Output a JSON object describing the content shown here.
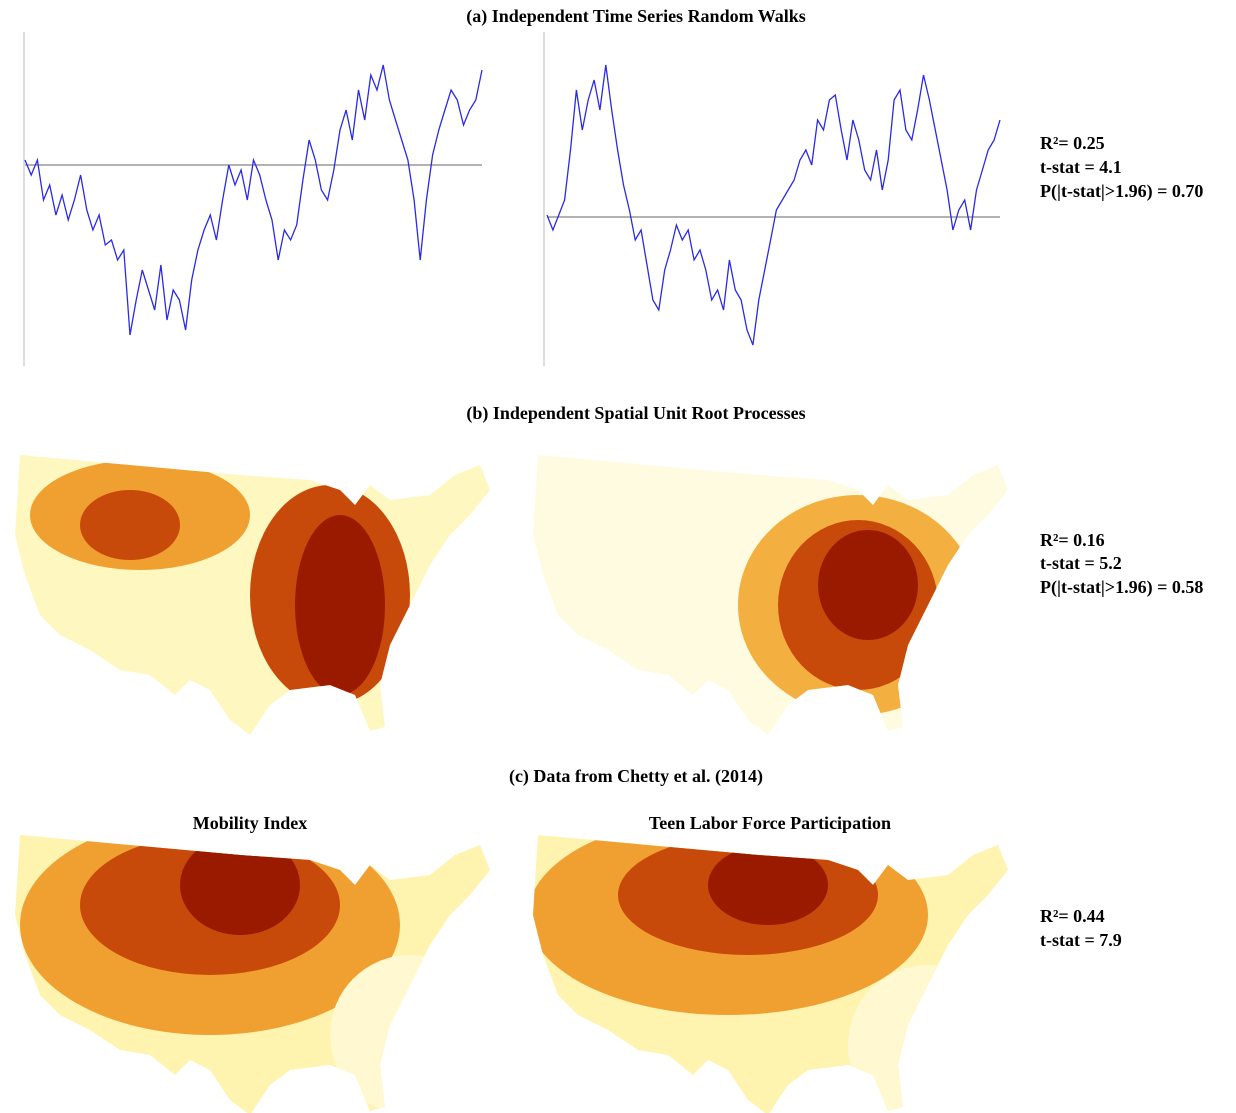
{
  "panels": [
    {
      "title": "(a) Independent Time Series Random Walks",
      "stats": [
        "R²= 0.25",
        "t-stat = 4.1",
        "P(|t-stat|>1.96) = 0.70"
      ],
      "charts": [
        {
          "type": "line",
          "color": "#2a2ae8",
          "hline": 0,
          "ylim": [
            -200,
            130
          ],
          "values": [
            5,
            -10,
            5,
            -35,
            -20,
            -50,
            -30,
            -55,
            -35,
            -10,
            -45,
            -65,
            -50,
            -80,
            -75,
            -95,
            -85,
            -170,
            -135,
            -105,
            -125,
            -145,
            -100,
            -155,
            -125,
            -135,
            -165,
            -115,
            -85,
            -65,
            -50,
            -75,
            -35,
            0,
            -20,
            -5,
            -35,
            5,
            -10,
            -35,
            -55,
            -95,
            -65,
            -75,
            -60,
            -15,
            25,
            5,
            -25,
            -35,
            -5,
            35,
            55,
            25,
            75,
            45,
            90,
            75,
            100,
            65,
            45,
            25,
            5,
            -35,
            -95,
            -35,
            10,
            35,
            55,
            75,
            65,
            40,
            55,
            65,
            95
          ]
        },
        {
          "type": "line",
          "color": "#2a2ae8",
          "hline": 0,
          "ylim": [
            -148,
            182
          ],
          "values": [
            2,
            -13,
            2,
            17,
            67,
            127,
            87,
            117,
            137,
            107,
            152,
            107,
            67,
            32,
            7,
            -23,
            -13,
            -48,
            -83,
            -93,
            -53,
            -33,
            -8,
            -23,
            -13,
            -43,
            -33,
            -53,
            -83,
            -73,
            -93,
            -43,
            -73,
            -83,
            -113,
            -128,
            -83,
            -53,
            -23,
            7,
            17,
            27,
            37,
            57,
            67,
            52,
            97,
            87,
            117,
            122,
            87,
            57,
            97,
            77,
            47,
            37,
            67,
            27,
            57,
            117,
            127,
            87,
            77,
            107,
            142,
            117,
            87,
            57,
            27,
            -13,
            7,
            17,
            -13,
            27,
            47,
            67,
            77,
            97
          ]
        }
      ]
    },
    {
      "title": "(b) Independent Spatial Unit Root Processes",
      "stats": [
        "R²= 0.16",
        "t-stat = 5.2",
        "P(|t-stat|>1.96) = 0.58"
      ]
    },
    {
      "title": "(c) Data from Chetty et al. (2014)",
      "map_titles": [
        "Mobility Index",
        "Teen Labor Force Participation"
      ],
      "stats": [
        "R²= 0.44",
        "t-stat = 7.9"
      ]
    }
  ]
}
